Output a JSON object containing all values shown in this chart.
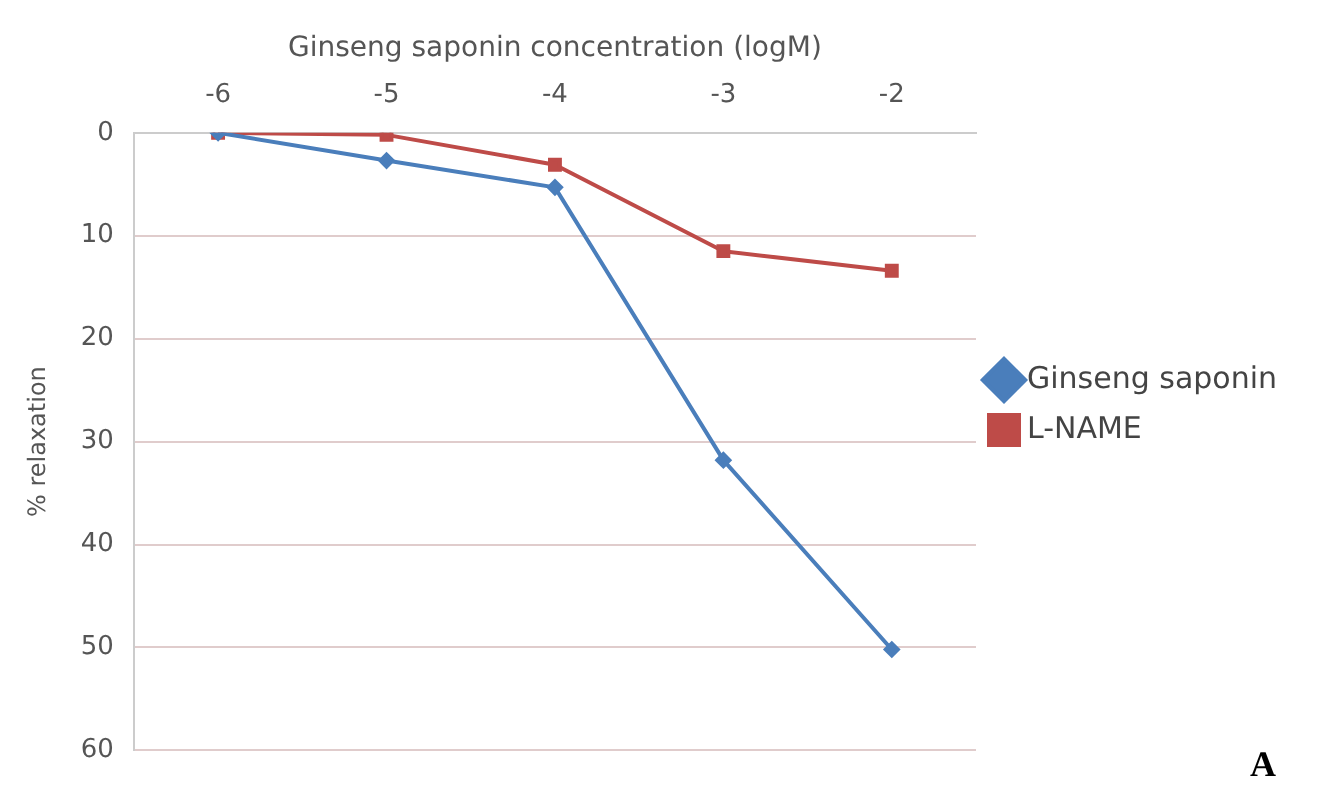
{
  "chart_data": {
    "type": "line",
    "xlabel": "Ginseng saponin concentration (logM)",
    "ylabel": "% relaxation",
    "categories": [
      "-6",
      "-5",
      "-4",
      "-3",
      "-2"
    ],
    "series": [
      {
        "name": "Ginseng saponin",
        "color": "#4a7ebb",
        "marker": "diamond",
        "values": [
          0,
          2.7,
          5.3,
          31.8,
          50.2
        ]
      },
      {
        "name": "L-NAME",
        "color": "#be4b48",
        "marker": "square",
        "values": [
          0,
          0.2,
          3.1,
          11.5,
          13.4
        ]
      }
    ],
    "ylim": [
      60,
      0
    ],
    "yticks": [
      0,
      10,
      20,
      30,
      40,
      50,
      60
    ],
    "grid": "y",
    "legend": "right",
    "line_style": "solid",
    "annotations": [
      "A"
    ]
  }
}
